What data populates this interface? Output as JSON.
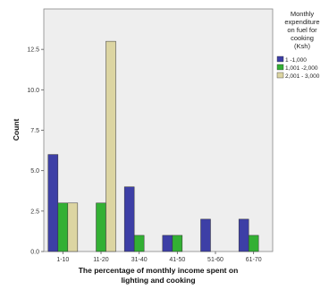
{
  "chart_data": {
    "type": "bar",
    "xlabel_lines": [
      "The percentage of monthly income spent on",
      "lighting and cooking"
    ],
    "ylabel": "Count",
    "categories": [
      "1-10",
      "11-20",
      "31-40",
      "41-50",
      "51-60",
      "61-70"
    ],
    "series": [
      {
        "name": "1 -1,000",
        "color": "#3d3fa6",
        "values": [
          6,
          0,
          4,
          1,
          2,
          2
        ]
      },
      {
        "name": "1,001 -2,000",
        "color": "#33b034",
        "values": [
          3,
          3,
          1,
          1,
          0,
          1
        ]
      },
      {
        "name": "2,001 - 3,000",
        "color": "#dcd5a2",
        "values": [
          3,
          13,
          0,
          0,
          0,
          0
        ]
      }
    ],
    "yticks": [
      "0.0",
      "2.5",
      "5.0",
      "7.5",
      "10.0",
      "12.5"
    ],
    "ylim": [
      0,
      15
    ],
    "legend": {
      "title_lines": [
        "Monthly",
        "expenditure",
        "on fuel for",
        "cooking",
        "(Ksh)"
      ],
      "placement": "right"
    },
    "plot_background": "#eeeeee",
    "grid": false
  }
}
